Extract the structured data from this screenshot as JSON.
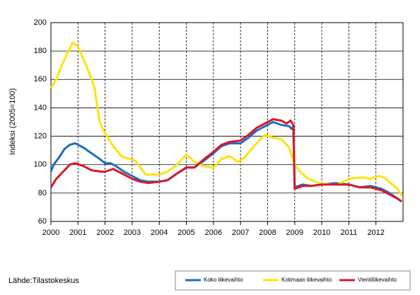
{
  "chart_data": {
    "type": "line",
    "y_label": "Indeksi (2005=100)",
    "source": "Lähde:Tilastokeskus",
    "xlim": [
      2000,
      2013
    ],
    "xticks": [
      2000,
      2001,
      2002,
      2003,
      2004,
      2005,
      2006,
      2007,
      2008,
      2009,
      2010,
      2011,
      2012
    ],
    "ylim": [
      60,
      200
    ],
    "yticks": [
      60,
      80,
      100,
      120,
      140,
      160,
      180,
      200
    ],
    "grid": true,
    "series": [
      {
        "name": "Koko liikevaihto",
        "color": "#1f6fbf",
        "x": [
          2000.0,
          2000.1,
          2000.3,
          2000.5,
          2000.7,
          2000.9,
          2001.2,
          2001.5,
          2001.8,
          2002.0,
          2002.2,
          2002.4,
          2002.7,
          2003.0,
          2003.3,
          2003.6,
          2004.0,
          2004.3,
          2004.6,
          2005.0,
          2005.3,
          2005.6,
          2006.0,
          2006.3,
          2006.6,
          2007.0,
          2007.3,
          2007.6,
          2008.0,
          2008.2,
          2008.5,
          2008.8,
          2008.9,
          2008.95,
          2009.0,
          2009.3,
          2009.6,
          2010.0,
          2010.5,
          2011.0,
          2011.4,
          2011.8,
          2012.2,
          2012.5,
          2012.8,
          2012.95
        ],
        "values": [
          95,
          100,
          105,
          111,
          114,
          115,
          112,
          108,
          104,
          101,
          101,
          99,
          95,
          92,
          89,
          88,
          88,
          89,
          93,
          98,
          98,
          102,
          108,
          113,
          115,
          115,
          119,
          124,
          128,
          130,
          128,
          127,
          125,
          127,
          84,
          86,
          85,
          86,
          87,
          86,
          84,
          85,
          83,
          80,
          76,
          74
        ]
      },
      {
        "name": "Kotimaan liikevaihto",
        "color": "#fde30f",
        "x": [
          2000.0,
          2000.2,
          2000.4,
          2000.6,
          2000.8,
          2001.0,
          2001.3,
          2001.6,
          2001.8,
          2002.0,
          2002.3,
          2002.6,
          2002.9,
          2003.1,
          2003.5,
          2003.8,
          2004.0,
          2004.3,
          2004.6,
          2005.0,
          2005.3,
          2005.6,
          2006.0,
          2006.3,
          2006.6,
          2006.9,
          2007.1,
          2007.5,
          2007.9,
          2008.2,
          2008.5,
          2008.8,
          2009.0,
          2009.2,
          2009.5,
          2009.9,
          2010.3,
          2010.6,
          2011.0,
          2011.5,
          2011.8,
          2012.1,
          2012.3,
          2012.6,
          2012.8,
          2012.95
        ],
        "values": [
          154,
          160,
          170,
          178,
          186,
          183,
          170,
          155,
          130,
          122,
          113,
          106,
          104,
          103,
          93,
          93,
          93,
          95,
          99,
          107,
          102,
          99,
          98,
          104,
          106,
          102,
          104,
          113,
          121,
          119,
          118,
          112,
          100,
          95,
          90,
          87,
          86,
          86,
          90,
          91,
          90,
          92,
          91,
          86,
          83,
          78
        ]
      },
      {
        "name": "Vientiliikevaihto",
        "color": "#d7192a",
        "x": [
          2000.0,
          2000.2,
          2000.5,
          2000.7,
          2000.9,
          2001.2,
          2001.5,
          2001.9,
          2002.0,
          2002.3,
          2002.6,
          2003.0,
          2003.3,
          2003.6,
          2004.0,
          2004.3,
          2004.6,
          2005.0,
          2005.3,
          2005.6,
          2006.0,
          2006.3,
          2006.6,
          2007.0,
          2007.3,
          2007.6,
          2008.0,
          2008.2,
          2008.5,
          2008.7,
          2008.85,
          2008.95,
          2009.0,
          2009.3,
          2009.6,
          2010.0,
          2010.5,
          2011.0,
          2011.4,
          2011.8,
          2012.2,
          2012.5,
          2012.8,
          2012.95
        ],
        "values": [
          84,
          90,
          96,
          100,
          101,
          99,
          96,
          95,
          95,
          97,
          94,
          90,
          88,
          87,
          88,
          89,
          93,
          98,
          98,
          103,
          109,
          114,
          116,
          117,
          121,
          126,
          130,
          132,
          131,
          129,
          131,
          128,
          83,
          85,
          85,
          86,
          86,
          86,
          84,
          84,
          82,
          79,
          76,
          74
        ]
      }
    ]
  }
}
